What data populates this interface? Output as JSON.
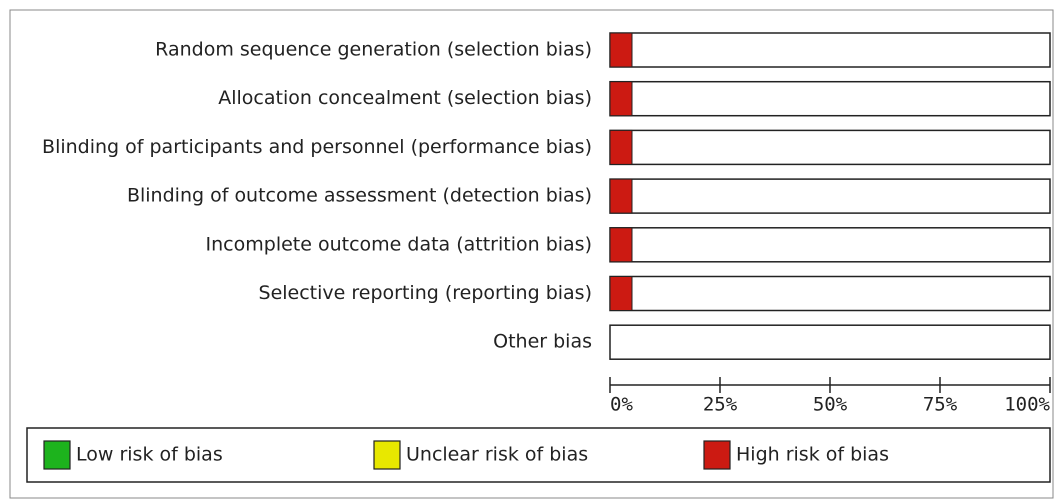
{
  "chart_data": {
    "type": "stacked-bar-horizontal",
    "categories": [
      "Random sequence generation (selection bias)",
      "Allocation concealment (selection bias)",
      "Blinding of participants and personnel (performance bias)",
      "Blinding of outcome assessment (detection bias)",
      "Incomplete outcome data (attrition bias)",
      "Selective reporting (reporting bias)",
      "Other bias"
    ],
    "series": [
      {
        "name": "Low risk of bias",
        "color": "#1db31d",
        "values": [
          0,
          0,
          0,
          0,
          0,
          0,
          0
        ]
      },
      {
        "name": "Unclear risk of bias",
        "color": "#e8e800",
        "values": [
          0,
          0,
          0,
          0,
          0,
          0,
          0
        ]
      },
      {
        "name": "High risk of bias",
        "color": "#cc1a12",
        "values": [
          5,
          5,
          5,
          5,
          5,
          5,
          0
        ]
      }
    ],
    "xlim": [
      0,
      100
    ],
    "xticks": [
      {
        "value": 0,
        "label": "0%"
      },
      {
        "value": 25,
        "label": "25%"
      },
      {
        "value": 50,
        "label": "50%"
      },
      {
        "value": 75,
        "label": "75%"
      },
      {
        "value": 100,
        "label": "100%"
      }
    ]
  }
}
